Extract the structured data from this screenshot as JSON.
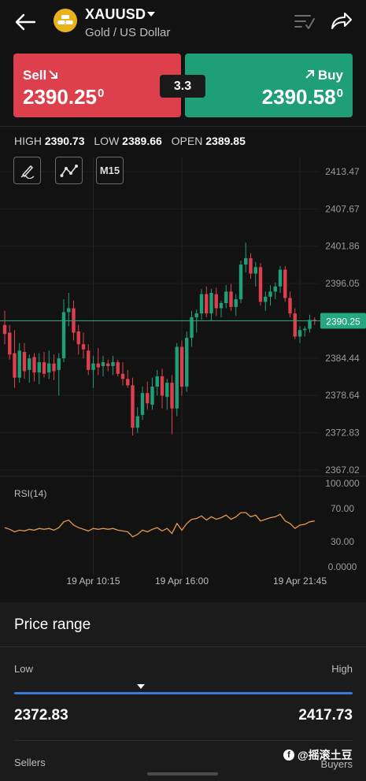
{
  "header": {
    "symbol": "XAUUSD",
    "subtitle": "Gold / US Dollar"
  },
  "quote": {
    "sell_label": "Sell",
    "sell_price_main": "2390.25",
    "sell_price_sup": "0",
    "buy_label": "Buy",
    "buy_price_main": "2390.58",
    "buy_price_sup": "0",
    "spread": "3.3"
  },
  "stats": {
    "high_label": "HIGH",
    "high_value": "2390.73",
    "low_label": "LOW",
    "low_value": "2389.66",
    "open_label": "OPEN",
    "open_value": "2389.85"
  },
  "tools": {
    "timeframe": "M15"
  },
  "chart_data": {
    "type": "candlestick",
    "price_axis_ticks": [
      "2413.47",
      "2407.67",
      "2401.86",
      "2396.05",
      "2384.44",
      "2378.64",
      "2372.83",
      "2367.02"
    ],
    "price_axis_values": [
      2413.47,
      2407.67,
      2401.86,
      2396.05,
      2384.44,
      2378.64,
      2372.83,
      2367.02
    ],
    "price_range": [
      2367.02,
      2413.47
    ],
    "current_price": "2390.25",
    "current_price_value": 2390.25,
    "time_ticks": [
      "19 Apr  10:15",
      "19 Apr  16:00",
      "19 Apr  21:45"
    ],
    "time_tick_index": [
      18,
      36,
      60
    ],
    "candles": [
      [
        2389.6,
        2391.8,
        2386.6,
        2388.2
      ],
      [
        2388.4,
        2389.6,
        2384.2,
        2385.0
      ],
      [
        2385.2,
        2388.8,
        2379.8,
        2381.4
      ],
      [
        2381.4,
        2386.8,
        2380.6,
        2385.6
      ],
      [
        2385.4,
        2386.8,
        2381.2,
        2382.4
      ],
      [
        2382.6,
        2385.0,
        2380.6,
        2384.4
      ],
      [
        2384.6,
        2385.2,
        2380.8,
        2382.2
      ],
      [
        2382.2,
        2385.2,
        2380.4,
        2383.8
      ],
      [
        2383.8,
        2385.4,
        2381.4,
        2382.0
      ],
      [
        2382.2,
        2385.6,
        2381.2,
        2383.6
      ],
      [
        2383.6,
        2385.0,
        2381.0,
        2382.4
      ],
      [
        2382.6,
        2385.2,
        2378.6,
        2384.4
      ],
      [
        2384.4,
        2393.6,
        2383.8,
        2391.6
      ],
      [
        2391.6,
        2394.6,
        2389.4,
        2392.2
      ],
      [
        2392.2,
        2393.4,
        2387.2,
        2388.4
      ],
      [
        2388.6,
        2389.6,
        2385.0,
        2386.6
      ],
      [
        2386.6,
        2388.4,
        2384.4,
        2385.8
      ],
      [
        2385.6,
        2386.6,
        2381.8,
        2382.6
      ],
      [
        2382.6,
        2384.8,
        2379.8,
        2383.6
      ],
      [
        2383.6,
        2386.0,
        2381.8,
        2383.0
      ],
      [
        2383.2,
        2384.8,
        2381.6,
        2383.8
      ],
      [
        2383.6,
        2384.2,
        2382.4,
        2383.2
      ],
      [
        2383.2,
        2384.8,
        2381.8,
        2383.8
      ],
      [
        2383.8,
        2384.2,
        2381.6,
        2382.0
      ],
      [
        2382.0,
        2383.8,
        2380.2,
        2381.2
      ],
      [
        2381.2,
        2382.6,
        2379.8,
        2380.2
      ],
      [
        2380.2,
        2381.4,
        2372.4,
        2373.6
      ],
      [
        2373.6,
        2376.8,
        2372.8,
        2375.4
      ],
      [
        2375.6,
        2380.0,
        2374.8,
        2379.0
      ],
      [
        2379.0,
        2380.8,
        2376.4,
        2377.4
      ],
      [
        2377.2,
        2381.4,
        2376.4,
        2380.0
      ],
      [
        2380.0,
        2382.6,
        2378.6,
        2381.6
      ],
      [
        2381.6,
        2382.8,
        2376.6,
        2378.6
      ],
      [
        2378.4,
        2381.2,
        2376.4,
        2380.6
      ],
      [
        2380.6,
        2381.8,
        2372.6,
        2376.6
      ],
      [
        2376.6,
        2386.8,
        2375.4,
        2386.2
      ],
      [
        2386.2,
        2387.2,
        2378.6,
        2380.0
      ],
      [
        2380.0,
        2388.6,
        2379.2,
        2387.6
      ],
      [
        2387.6,
        2391.8,
        2386.2,
        2390.8
      ],
      [
        2390.8,
        2392.0,
        2388.4,
        2391.4
      ],
      [
        2391.4,
        2395.2,
        2390.4,
        2394.4
      ],
      [
        2394.4,
        2395.6,
        2390.8,
        2391.4
      ],
      [
        2391.4,
        2395.2,
        2390.2,
        2394.6
      ],
      [
        2394.4,
        2395.4,
        2391.0,
        2392.2
      ],
      [
        2392.2,
        2393.4,
        2390.8,
        2393.0
      ],
      [
        2393.0,
        2395.8,
        2392.2,
        2394.8
      ],
      [
        2394.8,
        2396.0,
        2391.8,
        2392.4
      ],
      [
        2392.4,
        2394.4,
        2391.0,
        2393.6
      ],
      [
        2393.6,
        2399.6,
        2393.0,
        2399.0
      ],
      [
        2399.0,
        2402.4,
        2397.8,
        2400.0
      ],
      [
        2400.0,
        2400.8,
        2396.8,
        2397.6
      ],
      [
        2397.6,
        2399.4,
        2395.6,
        2398.6
      ],
      [
        2398.6,
        2399.2,
        2392.6,
        2393.2
      ],
      [
        2393.2,
        2394.8,
        2391.8,
        2394.0
      ],
      [
        2394.0,
        2395.8,
        2392.6,
        2394.8
      ],
      [
        2394.8,
        2396.2,
        2393.6,
        2395.6
      ],
      [
        2395.6,
        2398.8,
        2394.6,
        2398.2
      ],
      [
        2398.2,
        2398.8,
        2393.2,
        2393.8
      ],
      [
        2393.8,
        2394.8,
        2390.8,
        2391.4
      ],
      [
        2391.4,
        2392.2,
        2387.4,
        2387.8
      ],
      [
        2387.8,
        2389.4,
        2386.8,
        2388.8
      ],
      [
        2388.8,
        2389.4,
        2387.8,
        2389.0
      ],
      [
        2389.0,
        2391.2,
        2388.4,
        2390.4
      ],
      [
        2390.4,
        2390.8,
        2389.6,
        2390.25
      ]
    ]
  },
  "rsi": {
    "label": "RSI(14)",
    "ticks": [
      "100.000",
      "70.00",
      "30.00",
      "0.0000"
    ],
    "tick_values": [
      100,
      70,
      30,
      0
    ],
    "values": [
      47,
      45,
      42,
      44,
      43,
      45,
      44,
      46,
      45,
      46,
      44,
      47,
      54,
      56,
      50,
      47,
      45,
      43,
      46,
      45,
      46,
      45,
      46,
      44,
      43,
      42,
      36,
      39,
      44,
      42,
      45,
      47,
      43,
      46,
      40,
      52,
      44,
      52,
      57,
      58,
      61,
      56,
      60,
      57,
      59,
      62,
      57,
      60,
      65,
      65,
      60,
      62,
      55,
      57,
      59,
      60,
      63,
      55,
      52,
      46,
      50,
      51,
      54,
      55
    ]
  },
  "price_range": {
    "title": "Price range",
    "low_label": "Low",
    "high_label": "High",
    "low_value": "2372.83",
    "high_value": "2417.73",
    "marker_fraction": 0.375,
    "sellers_label": "Sellers",
    "buyers_label": "Buyers"
  },
  "watermark": {
    "text": "@摇滚土豆"
  },
  "colors": {
    "up": "#1f9f77",
    "down": "#dd3f4c",
    "price_line": "#25a882",
    "rsi": "#e39a4a",
    "accent": "#3b78d8"
  }
}
